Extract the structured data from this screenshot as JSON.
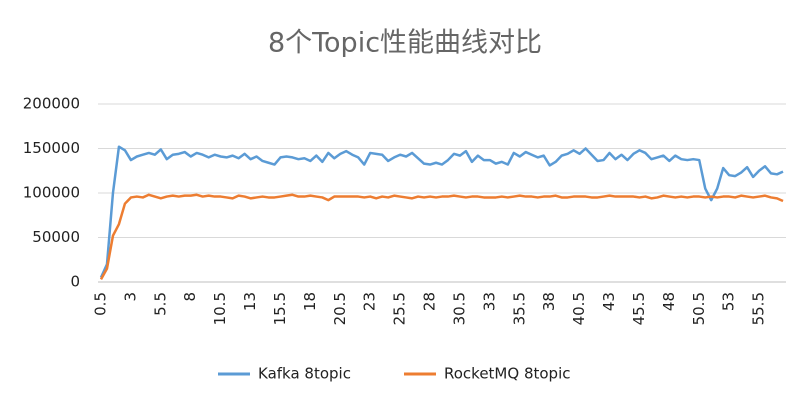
{
  "chart_data": {
    "type": "line",
    "title": "8个Topic性能曲线对比",
    "x": [
      0.5,
      1,
      1.5,
      2,
      2.5,
      3,
      3.5,
      4,
      4.5,
      5,
      5.5,
      6,
      6.5,
      7,
      7.5,
      8,
      8.5,
      9,
      9.5,
      10,
      10.5,
      11,
      11.5,
      12,
      12.5,
      13,
      13.5,
      14,
      14.5,
      15,
      15.5,
      16,
      16.5,
      17,
      17.5,
      18,
      18.5,
      19,
      19.5,
      20,
      20.5,
      21,
      21.5,
      22,
      22.5,
      23,
      23.5,
      24,
      24.5,
      25,
      25.5,
      26,
      26.5,
      27,
      27.5,
      28,
      28.5,
      29,
      29.5,
      30,
      30.5,
      31,
      31.5,
      32,
      32.5,
      33,
      33.5,
      34,
      34.5,
      35,
      35.5,
      36,
      36.5,
      37,
      37.5,
      38,
      38.5,
      39,
      39.5,
      40,
      40.5,
      41,
      41.5,
      42,
      42.5,
      43,
      43.5,
      44,
      44.5,
      45,
      45.5,
      46,
      46.5,
      47,
      47.5,
      48,
      48.5,
      49,
      49.5,
      50,
      50.5,
      51,
      51.5,
      52,
      52.5,
      53,
      53.5,
      54,
      54.5,
      55,
      55.5,
      56,
      56.5,
      57,
      57.5
    ],
    "series": [
      {
        "name": "Kafka 8topic",
        "color": "#5b9bd5",
        "values": [
          5000,
          20000,
          100000,
          152000,
          148000,
          137000,
          141000,
          143000,
          145000,
          143000,
          149000,
          138000,
          143000,
          144000,
          146000,
          141000,
          145000,
          143000,
          140000,
          143000,
          141000,
          140000,
          142000,
          139000,
          144000,
          138000,
          141000,
          136000,
          134000,
          132000,
          140000,
          141000,
          140000,
          138000,
          139000,
          136000,
          142000,
          135000,
          145000,
          139000,
          144000,
          147000,
          143000,
          140000,
          132000,
          145000,
          144000,
          143000,
          136000,
          140000,
          143000,
          141000,
          145000,
          139000,
          133000,
          132000,
          134000,
          132000,
          137000,
          144000,
          142000,
          147000,
          135000,
          142000,
          137000,
          137000,
          133000,
          135000,
          132000,
          145000,
          141000,
          146000,
          143000,
          140000,
          142000,
          131000,
          135000,
          142000,
          144000,
          148000,
          144000,
          150000,
          143000,
          136000,
          137000,
          145000,
          138000,
          143000,
          137000,
          144000,
          148000,
          145000,
          138000,
          140000,
          142000,
          136000,
          142000,
          138000,
          137000,
          138000,
          137000,
          105000,
          92000,
          105000,
          128000,
          120000,
          119000,
          123000,
          129000,
          118000,
          125000,
          130000,
          122000,
          121000,
          124000
        ]
      },
      {
        "name": "RocketMQ 8topic",
        "color": "#ed7d31",
        "values": [
          3000,
          15000,
          52000,
          65000,
          88000,
          95000,
          96000,
          95000,
          98000,
          96000,
          94000,
          96000,
          97000,
          96000,
          97000,
          97000,
          98000,
          96000,
          97000,
          96000,
          96000,
          95000,
          94000,
          97000,
          96000,
          94000,
          95000,
          96000,
          95000,
          95000,
          96000,
          97000,
          98000,
          96000,
          96000,
          97000,
          96000,
          95000,
          92000,
          96000,
          96000,
          96000,
          96000,
          96000,
          95000,
          96000,
          94000,
          96000,
          95000,
          97000,
          96000,
          95000,
          94000,
          96000,
          95000,
          96000,
          95000,
          96000,
          96000,
          97000,
          96000,
          95000,
          96000,
          96000,
          95000,
          95000,
          95000,
          96000,
          95000,
          96000,
          97000,
          96000,
          96000,
          95000,
          96000,
          96000,
          97000,
          95000,
          95000,
          96000,
          96000,
          96000,
          95000,
          95000,
          96000,
          97000,
          96000,
          96000,
          96000,
          96000,
          95000,
          96000,
          94000,
          95000,
          97000,
          96000,
          95000,
          96000,
          95000,
          96000,
          96000,
          95000,
          96000,
          95000,
          96000,
          96000,
          95000,
          97000,
          96000,
          95000,
          96000,
          97000,
          95000,
          94000,
          91000
        ]
      }
    ],
    "xlim": [
      0.25,
      57.75
    ],
    "xticks": [
      0.5,
      3,
      5.5,
      8,
      10.5,
      13,
      15.5,
      18,
      20.5,
      23,
      25.5,
      28,
      30.5,
      33,
      35.5,
      38,
      40.5,
      43,
      45.5,
      48,
      50.5,
      53,
      55.5
    ],
    "ylim": [
      0,
      200000
    ],
    "yticks": [
      0,
      50000,
      100000,
      150000,
      200000
    ],
    "grid": true
  }
}
